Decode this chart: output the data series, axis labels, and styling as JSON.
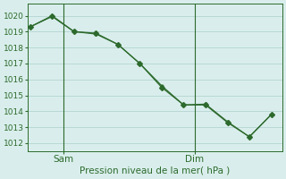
{
  "line1_x": [
    0,
    1,
    2,
    3,
    4,
    5,
    6,
    7,
    8,
    9,
    10,
    11
  ],
  "line1_y": [
    1019.3,
    1020.0,
    1019.0,
    1018.9,
    1018.2,
    1017.0,
    1015.5,
    1014.4,
    1014.4,
    1013.3,
    1012.4,
    1013.8
  ],
  "line2_x": [
    0,
    1,
    2,
    3,
    4,
    5,
    6,
    7,
    8,
    9,
    10,
    11
  ],
  "line2_y": [
    1019.3,
    1019.95,
    1019.0,
    1018.85,
    1018.2,
    1017.0,
    1015.6,
    1014.4,
    1014.45,
    1013.35,
    1012.4,
    1013.8
  ],
  "color": "#2d6a2d",
  "bg_color": "#d9eeec",
  "grid_color": "#b8d8d5",
  "ylim_min": 1011.5,
  "ylim_max": 1020.75,
  "yticks": [
    1012,
    1013,
    1014,
    1015,
    1016,
    1017,
    1018,
    1019,
    1020
  ],
  "sam_x": 1.5,
  "dim_x": 7.5,
  "xlim_min": -0.1,
  "xlim_max": 11.5,
  "xlabel": "Pression niveau de la mer( hPa )",
  "xlabel_fontsize": 7.5,
  "tick_fontsize": 6.5,
  "label_fontsize": 7.5,
  "marker_size": 3,
  "linewidth": 0.9
}
